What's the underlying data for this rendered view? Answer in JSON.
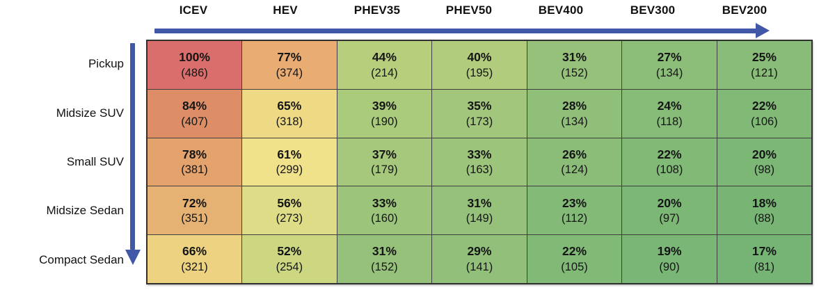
{
  "chart_data": {
    "type": "heatmap",
    "title": "",
    "columns": [
      "ICEV",
      "HEV",
      "PHEV35",
      "PHEV50",
      "BEV400",
      "BEV300",
      "BEV200"
    ],
    "rows": [
      "Pickup",
      "Midsize SUV",
      "Small SUV",
      "Midsize Sedan",
      "Compact Sedan"
    ],
    "values_percent": [
      [
        100,
        77,
        44,
        40,
        31,
        27,
        25
      ],
      [
        84,
        65,
        39,
        35,
        28,
        24,
        22
      ],
      [
        78,
        61,
        37,
        33,
        26,
        22,
        20
      ],
      [
        72,
        56,
        33,
        31,
        23,
        20,
        18
      ],
      [
        66,
        52,
        31,
        29,
        22,
        19,
        17
      ]
    ],
    "values_count": [
      [
        486,
        374,
        214,
        195,
        152,
        134,
        121
      ],
      [
        407,
        318,
        190,
        173,
        134,
        118,
        106
      ],
      [
        381,
        299,
        179,
        163,
        124,
        108,
        98
      ],
      [
        351,
        273,
        160,
        149,
        112,
        97,
        88
      ],
      [
        321,
        254,
        152,
        141,
        105,
        90,
        81
      ]
    ],
    "cell_label_format": "{percent}% / ({count})",
    "cell_colors": [
      [
        "#d96e6c",
        "#e9ad74",
        "#b7cf7d",
        "#b0cc7c",
        "#96c17b",
        "#8dbe79",
        "#89bc78"
      ],
      [
        "#de8e67",
        "#eeda85",
        "#aaca7c",
        "#a2c67c",
        "#90bf7a",
        "#86bb78",
        "#81b977"
      ],
      [
        "#e4a26c",
        "#f0e18b",
        "#a6c87c",
        "#9cc47b",
        "#8bbd79",
        "#81b977",
        "#7cb776"
      ],
      [
        "#e6b273",
        "#dedc86",
        "#9cc47b",
        "#96c17b",
        "#84ba78",
        "#7cb776",
        "#78b575"
      ],
      [
        "#edd381",
        "#cdd681",
        "#96c17b",
        "#92c07a",
        "#81b977",
        "#7ab676",
        "#75b475"
      ]
    ],
    "color_scale": {
      "high": "#d96e6c",
      "mid": "#f0e18b",
      "low": "#75b475",
      "high_value": 100,
      "low_value": 17
    },
    "x_axis_arrow_direction": "left-to-right",
    "y_axis_arrow_direction": "top-to-bottom",
    "legend": "none",
    "grid": true
  },
  "colors": {
    "arrow": "#4058a7",
    "grid_border": "#3f3f3f",
    "cell_text": "#151515"
  }
}
